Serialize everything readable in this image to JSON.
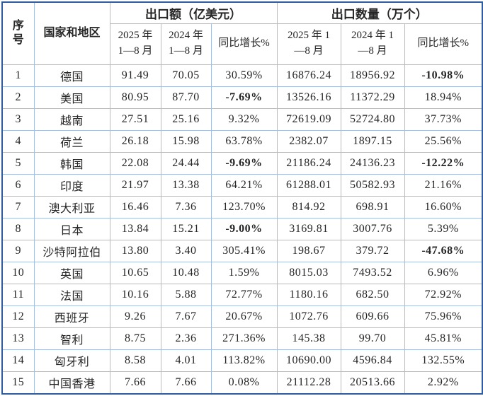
{
  "table": {
    "header": {
      "seq_line1": "序",
      "seq_line2": "号",
      "country": "国家和地区",
      "amount_group": "出口额（亿美元）",
      "qty_group": "出口数量（万个）",
      "amount_2025_line1": "2025 年",
      "amount_2025_line2": "1—8 月",
      "amount_2024_line1": "2024 年",
      "amount_2024_line2": "1—8 月",
      "amount_growth": "同比增长%",
      "qty_2025_line1": "2025 年 1",
      "qty_2025_line2": "—8 月",
      "qty_2024_line1": "2024 年 1",
      "qty_2024_line2": "—8 月",
      "qty_growth": "同比增长%"
    },
    "rows": [
      {
        "seq": "1",
        "country": "德国",
        "amount_2025": "91.49",
        "amount_2024": "70.05",
        "amount_growth": "30.59%",
        "qty_2025": "16876.24",
        "qty_2024": "18956.92",
        "qty_growth": "-10.98%"
      },
      {
        "seq": "2",
        "country": "美国",
        "amount_2025": "80.95",
        "amount_2024": "87.70",
        "amount_growth": "-7.69%",
        "qty_2025": "13526.16",
        "qty_2024": "11372.29",
        "qty_growth": "18.94%"
      },
      {
        "seq": "3",
        "country": "越南",
        "amount_2025": "27.51",
        "amount_2024": "25.16",
        "amount_growth": "9.32%",
        "qty_2025": "72619.09",
        "qty_2024": "52724.80",
        "qty_growth": "37.73%"
      },
      {
        "seq": "4",
        "country": "荷兰",
        "amount_2025": "26.18",
        "amount_2024": "15.98",
        "amount_growth": "63.78%",
        "qty_2025": "2382.07",
        "qty_2024": "1897.15",
        "qty_growth": "25.56%"
      },
      {
        "seq": "5",
        "country": "韩国",
        "amount_2025": "22.08",
        "amount_2024": "24.44",
        "amount_growth": "-9.69%",
        "qty_2025": "21186.24",
        "qty_2024": "24136.23",
        "qty_growth": "-12.22%"
      },
      {
        "seq": "6",
        "country": "印度",
        "amount_2025": "21.97",
        "amount_2024": "13.38",
        "amount_growth": "64.21%",
        "qty_2025": "61288.01",
        "qty_2024": "50582.93",
        "qty_growth": "21.16%"
      },
      {
        "seq": "7",
        "country": "澳大利亚",
        "amount_2025": "16.46",
        "amount_2024": "7.36",
        "amount_growth": "123.70%",
        "qty_2025": "814.92",
        "qty_2024": "698.91",
        "qty_growth": "16.60%"
      },
      {
        "seq": "8",
        "country": "日本",
        "amount_2025": "13.84",
        "amount_2024": "15.21",
        "amount_growth": "-9.00%",
        "qty_2025": "3169.81",
        "qty_2024": "3007.76",
        "qty_growth": "5.39%"
      },
      {
        "seq": "9",
        "country": "沙特阿拉伯",
        "amount_2025": "13.80",
        "amount_2024": "3.40",
        "amount_growth": "305.41%",
        "qty_2025": "198.67",
        "qty_2024": "379.72",
        "qty_growth": "-47.68%"
      },
      {
        "seq": "10",
        "country": "英国",
        "amount_2025": "10.65",
        "amount_2024": "10.48",
        "amount_growth": "1.59%",
        "qty_2025": "8015.03",
        "qty_2024": "7493.52",
        "qty_growth": "6.96%"
      },
      {
        "seq": "11",
        "country": "法国",
        "amount_2025": "10.16",
        "amount_2024": "5.88",
        "amount_growth": "72.77%",
        "qty_2025": "1180.16",
        "qty_2024": "682.50",
        "qty_growth": "72.92%"
      },
      {
        "seq": "12",
        "country": "西班牙",
        "amount_2025": "9.26",
        "amount_2024": "7.67",
        "amount_growth": "20.67%",
        "qty_2025": "1072.76",
        "qty_2024": "609.66",
        "qty_growth": "75.96%"
      },
      {
        "seq": "13",
        "country": "智利",
        "amount_2025": "8.75",
        "amount_2024": "2.36",
        "amount_growth": "271.36%",
        "qty_2025": "145.38",
        "qty_2024": "99.70",
        "qty_growth": "45.81%"
      },
      {
        "seq": "14",
        "country": "匈牙利",
        "amount_2025": "8.58",
        "amount_2024": "4.01",
        "amount_growth": "113.82%",
        "qty_2025": "10690.00",
        "qty_2024": "4596.84",
        "qty_growth": "132.55%"
      },
      {
        "seq": "15",
        "country": "中国香港",
        "amount_2025": "7.66",
        "amount_2024": "7.66",
        "amount_growth": "0.08%",
        "qty_2025": "21112.28",
        "qty_2024": "20513.66",
        "qty_growth": "2.92%"
      }
    ]
  },
  "colors": {
    "negative_value": "#fe0000",
    "outer_border": "#2f5c9e",
    "grid_line": "#a6bfdd",
    "text": "#262626"
  }
}
